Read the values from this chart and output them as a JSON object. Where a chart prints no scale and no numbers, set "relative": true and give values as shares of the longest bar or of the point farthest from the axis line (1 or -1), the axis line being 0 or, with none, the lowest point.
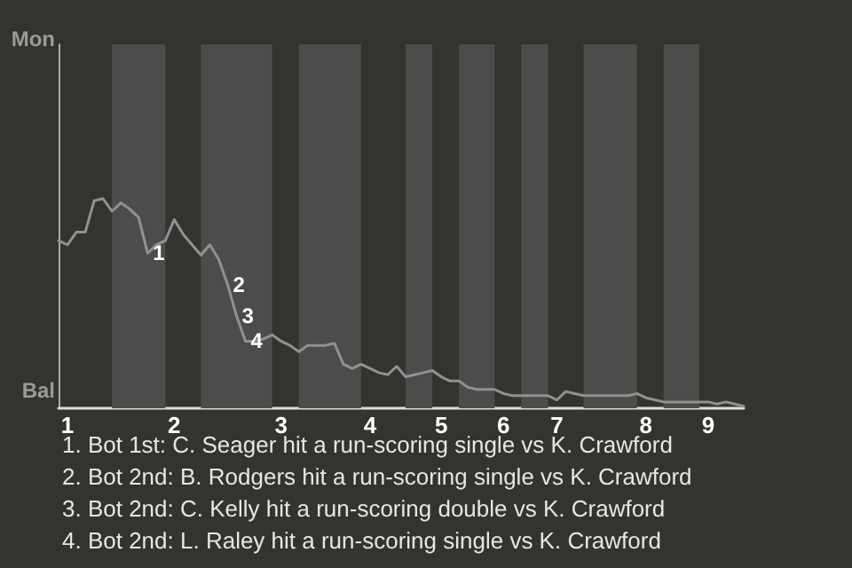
{
  "chart_data": {
    "type": "line",
    "relative": true,
    "categories": [
      null,
      "1",
      null,
      null,
      null,
      null,
      null,
      null,
      null,
      null,
      null,
      null,
      null,
      "2",
      null,
      null,
      null,
      null,
      null,
      null,
      null,
      null,
      null,
      null,
      null,
      "3",
      null,
      null,
      null,
      null,
      null,
      null,
      null,
      null,
      null,
      "4",
      null,
      null,
      null,
      null,
      null,
      null,
      null,
      "5",
      null,
      null,
      null,
      null,
      null,
      null,
      "6",
      null,
      null,
      null,
      null,
      null,
      "7",
      null,
      null,
      null,
      null,
      null,
      null,
      null,
      null,
      null,
      "8",
      null,
      null,
      null,
      null,
      null,
      null,
      "9",
      null,
      null,
      null,
      null
    ],
    "series": [
      {
        "color": "#8c9394",
        "values": [
          0.8,
          0.78,
          0.84,
          0.84,
          0.99,
          1,
          0.94,
          0.98,
          0.95,
          0.91,
          0.74,
          0.78,
          0.8,
          0.9,
          0.83,
          0.78,
          0.73,
          0.78,
          0.71,
          0.59,
          0.44,
          0.32,
          0.32,
          0.33,
          0.35,
          0.32,
          0.3,
          0.27,
          0.3,
          0.3,
          0.3,
          0.31,
          0.21,
          0.19,
          0.21,
          0.19,
          0.17,
          0.16,
          0.2,
          0.15,
          0.16,
          0.17,
          0.18,
          0.15,
          0.13,
          0.13,
          0.1,
          0.09,
          0.09,
          0.09,
          0.07,
          0.06,
          0.06,
          0.06,
          0.06,
          0.06,
          0.04,
          0.08,
          0.07,
          0.06,
          0.06,
          0.06,
          0.06,
          0.06,
          0.06,
          0.07,
          0.05,
          0.04,
          0.03,
          0.03,
          0.03,
          0.03,
          0.03,
          0.03,
          0.02,
          0.03,
          0.02,
          0.01
        ]
      }
    ],
    "marker": "none",
    "line_style": "solid",
    "annotations": [
      "Mon",
      "Bal",
      "1",
      "2",
      "3",
      "4",
      "1. Bot 1st: C. Seager hit a run-scoring single vs K. Crawford",
      "2. Bot 2nd: B. Rodgers hit a run-scoring single vs K. Crawford",
      "3. Bot 2nd: C. Kelly hit a run-scoring double vs K. Crawford",
      "4. Bot 2nd: L. Raley hit a run-scoring single vs K. Crawford"
    ]
  }
}
